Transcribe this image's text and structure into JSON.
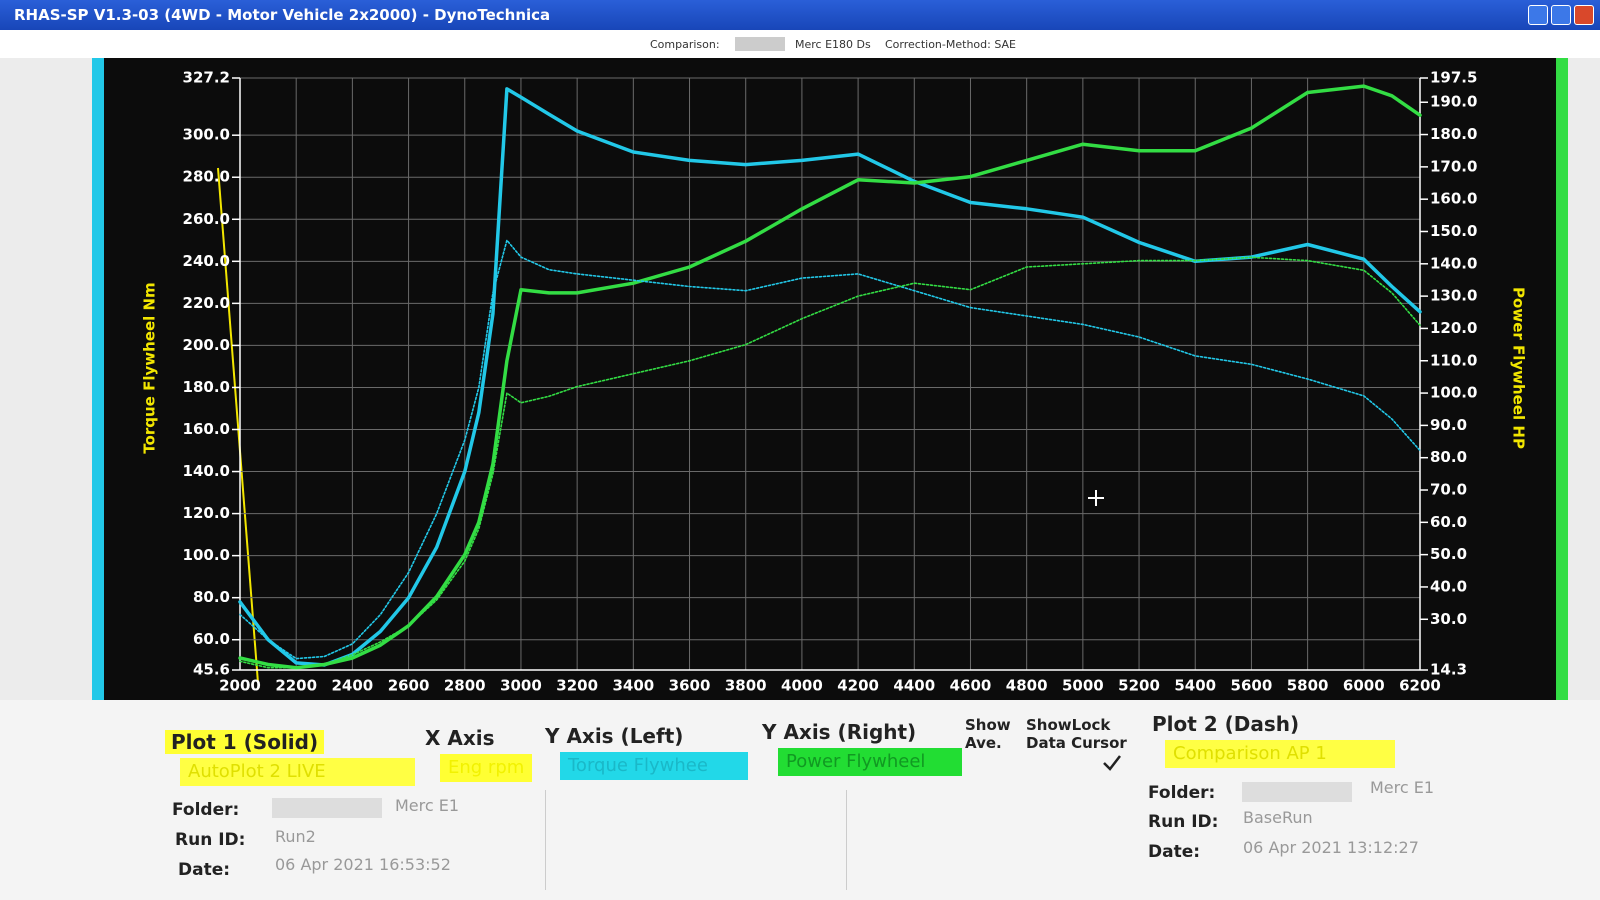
{
  "window": {
    "title": "RHAS-SP V1.3-03  (4WD - Motor Vehicle 2x2000) - DynoTechnica"
  },
  "header": {
    "comparison_label": "Comparison:",
    "comparison_name": "Merc E180 Ds",
    "correction": "Correction-Method: SAE"
  },
  "chart_data": {
    "type": "line",
    "y_label": "Torque Flywheel Nm",
    "y2_label": "Power Flywheel HP",
    "x": [
      2000,
      2100,
      2200,
      2300,
      2400,
      2500,
      2600,
      2700,
      2800,
      2850,
      2900,
      2950,
      3000,
      3100,
      3200,
      3400,
      3600,
      3800,
      4000,
      4200,
      4400,
      4600,
      4800,
      5000,
      5200,
      5400,
      5600,
      5800,
      6000,
      6100,
      6200
    ],
    "series": [
      {
        "color": "#22c8e8",
        "dash": false,
        "values": [
          78,
          60,
          49,
          48,
          53,
          64,
          80,
          104,
          140,
          168,
          215,
          322,
          318,
          310,
          302,
          292,
          288,
          286,
          288,
          291,
          278,
          268,
          265,
          261,
          249,
          240,
          242,
          248,
          241,
          228,
          216
        ]
      },
      {
        "color": "#33dd44",
        "dash": false,
        "axis": "y2",
        "values": [
          18,
          16,
          15,
          16,
          18,
          22,
          28,
          37,
          50,
          60,
          78,
          110,
          132,
          131,
          131,
          134,
          139,
          147,
          157,
          166,
          165,
          167,
          172,
          177,
          175,
          175,
          182,
          193,
          195,
          192,
          186
        ]
      },
      {
        "color": "#22c8e8",
        "dash": true,
        "values": [
          72,
          60,
          51,
          52,
          58,
          72,
          92,
          120,
          155,
          180,
          225,
          250,
          242,
          236,
          234,
          231,
          228,
          226,
          232,
          234,
          226,
          218,
          214,
          210,
          204,
          195,
          191,
          184,
          176,
          165,
          150
        ]
      },
      {
        "color": "#33dd44",
        "dash": true,
        "axis": "y2",
        "values": [
          17,
          15,
          15,
          16,
          19,
          23,
          28,
          36,
          48,
          58,
          75,
          100,
          97,
          99,
          102,
          106,
          110,
          115,
          123,
          130,
          134,
          132,
          139,
          140,
          141,
          141,
          142,
          141,
          138,
          131,
          121
        ]
      }
    ],
    "xlim": [
      2000,
      6200
    ],
    "xticks": [
      2000,
      2200,
      2400,
      2600,
      2800,
      3000,
      3200,
      3400,
      3600,
      3800,
      4000,
      4200,
      4400,
      4600,
      4800,
      5000,
      5200,
      5400,
      5600,
      5800,
      6000,
      6200
    ],
    "ylim": [
      45.6,
      327.2
    ],
    "yticks": [
      45.6,
      {
        "value": 60,
        "label": "60.0"
      },
      {
        "value": 80,
        "label": "80.0"
      },
      {
        "value": 100,
        "label": "100.0"
      },
      {
        "value": 120,
        "label": "120.0"
      },
      {
        "value": 140,
        "label": "140.0"
      },
      {
        "value": 160,
        "label": "160.0"
      },
      {
        "value": 180,
        "label": "180.0"
      },
      {
        "value": 200,
        "label": "200.0"
      },
      {
        "value": 220,
        "label": "220.0"
      },
      {
        "value": 240,
        "label": "240.0"
      },
      {
        "value": 260,
        "label": "260.0"
      },
      {
        "value": 280,
        "label": "280.0"
      },
      {
        "value": 300,
        "label": "300.0"
      },
      327.2
    ],
    "y2lim": [
      14.3,
      197.5
    ],
    "y2ticks": [
      14.3,
      {
        "value": 30,
        "label": "30.0"
      },
      {
        "value": 40,
        "label": "40.0"
      },
      {
        "value": 50,
        "label": "50.0"
      },
      {
        "value": 60,
        "label": "60.0"
      },
      {
        "value": 70,
        "label": "70.0"
      },
      {
        "value": 80,
        "label": "80.0"
      },
      {
        "value": 90,
        "label": "90.0"
      },
      {
        "value": 100,
        "label": "100.0"
      },
      {
        "value": 110,
        "label": "110.0"
      },
      {
        "value": 120,
        "label": "120.0"
      },
      {
        "value": 130,
        "label": "130.0"
      },
      {
        "value": 140,
        "label": "140.0"
      },
      {
        "value": 150,
        "label": "150.0"
      },
      {
        "value": 160,
        "label": "160.0"
      },
      {
        "value": 170,
        "label": "170.0"
      },
      {
        "value": 180,
        "label": "180.0"
      },
      {
        "value": 190,
        "label": "190.0"
      },
      197.5
    ],
    "grid": true
  },
  "panel": {
    "plot1": {
      "heading": "Plot 1 (Solid)",
      "selection": "AutoPlot 2 LIVE",
      "folder_label": "Folder:",
      "folder": "Merc E1",
      "run_id_label": "Run ID:",
      "run_id": "Run2",
      "date_label": "Date:",
      "date": "06 Apr 2021  16:53:52"
    },
    "x_axis": {
      "heading": "X Axis",
      "selection": "Eng rpm"
    },
    "y_left": {
      "heading": "Y Axis (Left)",
      "selection": "Torque Flywhee"
    },
    "y_right": {
      "heading": "Y Axis (Right)",
      "selection": "Power Flywheel"
    },
    "show_ave": "Show Ave.",
    "show_lock": "ShowLock Data Cursor",
    "plot2": {
      "heading": "Plot 2 (Dash)",
      "selection": "Comparison AP 1",
      "folder_label": "Folder:",
      "folder": "Merc E1",
      "run_id_label": "Run ID:",
      "run_id": "BaseRun",
      "date_label": "Date:",
      "date": "06 Apr 2021  13:12:27"
    }
  }
}
